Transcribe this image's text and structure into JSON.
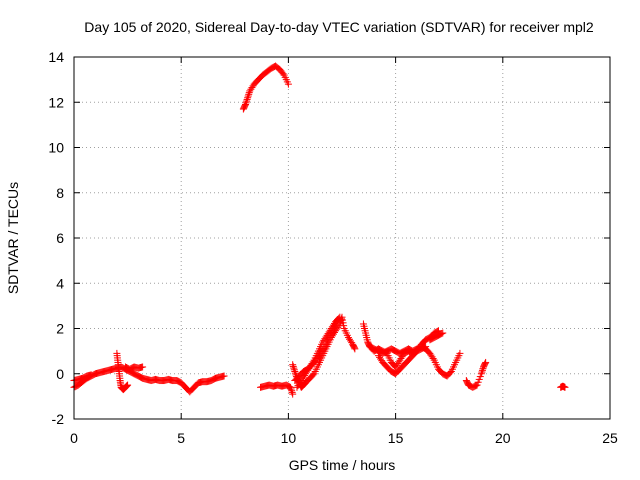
{
  "chart_data": {
    "type": "scatter",
    "title": "Day 105 of 2020, Sidereal Day-to-day VTEC variation (SDTVAR) for receiver mpl2",
    "xlabel": "GPS time / hours",
    "ylabel": "SDTVAR / TECUs",
    "xlim": [
      0,
      25
    ],
    "ylim": [
      -2,
      14
    ],
    "xticks": [
      0,
      5,
      10,
      15,
      20,
      25
    ],
    "yticks": [
      -2,
      0,
      2,
      4,
      6,
      8,
      10,
      12,
      14
    ],
    "grid": true,
    "marker": "+",
    "marker_color": "#ff0000",
    "series": [
      {
        "name": "mpl2",
        "segments": [
          [
            [
              0.0,
              -0.6
            ],
            [
              0.2,
              -0.5
            ],
            [
              0.4,
              -0.35
            ],
            [
              0.6,
              -0.2
            ],
            [
              0.8,
              -0.1
            ],
            [
              1.0,
              0.0
            ],
            [
              1.2,
              0.05
            ],
            [
              1.4,
              0.1
            ],
            [
              1.6,
              0.15
            ],
            [
              1.8,
              0.2
            ],
            [
              2.0,
              0.25
            ],
            [
              2.2,
              0.3
            ],
            [
              2.4,
              0.2
            ],
            [
              2.6,
              0.1
            ],
            [
              2.8,
              0.0
            ],
            [
              3.0,
              -0.1
            ],
            [
              3.2,
              -0.2
            ],
            [
              3.4,
              -0.25
            ],
            [
              3.6,
              -0.3
            ],
            [
              3.8,
              -0.25
            ],
            [
              4.0,
              -0.3
            ],
            [
              4.2,
              -0.3
            ],
            [
              4.4,
              -0.25
            ],
            [
              4.6,
              -0.3
            ],
            [
              4.8,
              -0.3
            ],
            [
              5.0,
              -0.4
            ],
            [
              5.2,
              -0.6
            ],
            [
              5.4,
              -0.8
            ],
            [
              5.6,
              -0.6
            ],
            [
              5.8,
              -0.4
            ],
            [
              6.0,
              -0.35
            ],
            [
              6.2,
              -0.35
            ],
            [
              6.4,
              -0.3
            ],
            [
              6.6,
              -0.2
            ],
            [
              6.8,
              -0.15
            ],
            [
              7.0,
              -0.1
            ]
          ],
          [
            [
              0.0,
              -0.3
            ],
            [
              0.2,
              -0.25
            ],
            [
              0.4,
              -0.2
            ],
            [
              0.6,
              -0.1
            ],
            [
              0.8,
              -0.05
            ]
          ],
          [
            [
              2.0,
              0.9
            ],
            [
              2.05,
              0.5
            ],
            [
              2.1,
              0.1
            ],
            [
              2.15,
              -0.3
            ],
            [
              2.2,
              -0.6
            ],
            [
              2.3,
              -0.7
            ],
            [
              2.4,
              -0.6
            ],
            [
              2.5,
              -0.5
            ]
          ],
          [
            [
              2.4,
              0.3
            ],
            [
              2.6,
              0.2
            ],
            [
              2.8,
              0.3
            ],
            [
              3.0,
              0.25
            ],
            [
              3.2,
              0.3
            ]
          ],
          [
            [
              7.9,
              11.7
            ],
            [
              8.0,
              11.9
            ],
            [
              8.1,
              12.2
            ],
            [
              8.2,
              12.5
            ],
            [
              8.4,
              12.8
            ],
            [
              8.6,
              13.0
            ],
            [
              8.8,
              13.2
            ],
            [
              9.0,
              13.35
            ],
            [
              9.2,
              13.5
            ],
            [
              9.4,
              13.6
            ],
            [
              9.6,
              13.45
            ],
            [
              9.8,
              13.2
            ],
            [
              10.0,
              12.8
            ]
          ],
          [
            [
              8.7,
              -0.6
            ],
            [
              8.9,
              -0.55
            ],
            [
              9.1,
              -0.5
            ],
            [
              9.3,
              -0.55
            ],
            [
              9.5,
              -0.5
            ],
            [
              9.7,
              -0.55
            ],
            [
              9.9,
              -0.5
            ],
            [
              10.1,
              -0.6
            ],
            [
              10.2,
              -0.9
            ]
          ],
          [
            [
              10.2,
              0.4
            ],
            [
              10.3,
              0.1
            ],
            [
              10.4,
              -0.2
            ],
            [
              10.5,
              -0.4
            ],
            [
              10.6,
              -0.6
            ],
            [
              10.7,
              -0.5
            ],
            [
              10.8,
              -0.4
            ],
            [
              11.0,
              -0.2
            ],
            [
              11.2,
              0.0
            ],
            [
              11.4,
              0.4
            ],
            [
              11.6,
              0.8
            ],
            [
              11.8,
              1.2
            ],
            [
              12.0,
              1.6
            ],
            [
              12.2,
              1.9
            ],
            [
              12.4,
              2.2
            ],
            [
              12.5,
              2.5
            ],
            [
              12.6,
              2.0
            ],
            [
              12.8,
              1.6
            ],
            [
              13.0,
              1.3
            ],
            [
              13.1,
              1.1
            ]
          ],
          [
            [
              10.4,
              -0.6
            ],
            [
              10.6,
              -0.3
            ],
            [
              10.8,
              0.0
            ],
            [
              11.0,
              0.3
            ],
            [
              11.2,
              0.6
            ],
            [
              11.4,
              1.0
            ],
            [
              11.6,
              1.4
            ],
            [
              11.8,
              1.7
            ],
            [
              12.0,
              2.0
            ],
            [
              12.2,
              2.3
            ],
            [
              12.4,
              2.5
            ]
          ],
          [
            [
              10.3,
              -0.3
            ],
            [
              10.5,
              -0.1
            ],
            [
              10.7,
              0.1
            ],
            [
              10.9,
              0.2
            ],
            [
              11.1,
              0.4
            ],
            [
              11.3,
              0.6
            ],
            [
              11.5,
              0.9
            ],
            [
              11.7,
              1.2
            ],
            [
              11.9,
              1.6
            ],
            [
              12.1,
              2.0
            ],
            [
              12.3,
              2.4
            ]
          ],
          [
            [
              13.5,
              2.2
            ],
            [
              13.6,
              1.8
            ],
            [
              13.7,
              1.4
            ],
            [
              13.8,
              1.2
            ],
            [
              14.0,
              1.0
            ],
            [
              14.2,
              1.1
            ],
            [
              14.4,
              1.0
            ],
            [
              14.6,
              0.9
            ],
            [
              14.8,
              0.5
            ],
            [
              15.0,
              0.3
            ],
            [
              15.2,
              0.6
            ],
            [
              15.4,
              0.9
            ],
            [
              15.6,
              1.0
            ],
            [
              15.8,
              0.9
            ],
            [
              16.0,
              1.0
            ],
            [
              16.2,
              1.1
            ],
            [
              16.4,
              1.2
            ]
          ],
          [
            [
              14.2,
              0.8
            ],
            [
              14.4,
              0.5
            ],
            [
              14.6,
              0.3
            ],
            [
              14.8,
              0.1
            ],
            [
              15.0,
              0.0
            ],
            [
              15.2,
              0.2
            ],
            [
              15.4,
              0.4
            ],
            [
              15.6,
              0.6
            ],
            [
              15.8,
              0.8
            ],
            [
              16.0,
              1.0
            ],
            [
              16.2,
              1.3
            ],
            [
              16.4,
              1.5
            ],
            [
              16.6,
              1.6
            ],
            [
              16.8,
              1.8
            ],
            [
              17.0,
              1.9
            ]
          ],
          [
            [
              13.8,
              1.2
            ],
            [
              14.0,
              1.1
            ],
            [
              14.2,
              1.0
            ],
            [
              14.4,
              0.9
            ],
            [
              14.6,
              1.0
            ],
            [
              14.8,
              1.1
            ],
            [
              15.0,
              1.0
            ],
            [
              15.2,
              0.9
            ],
            [
              15.4,
              1.0
            ],
            [
              15.6,
              1.1
            ],
            [
              15.8,
              1.0
            ],
            [
              16.0,
              1.1
            ],
            [
              16.2,
              1.2
            ],
            [
              16.4,
              1.1
            ],
            [
              16.6,
              0.9
            ],
            [
              16.8,
              0.6
            ],
            [
              17.0,
              0.2
            ],
            [
              17.2,
              0.0
            ],
            [
              17.4,
              -0.1
            ],
            [
              17.6,
              0.1
            ],
            [
              17.8,
              0.5
            ],
            [
              18.0,
              0.9
            ]
          ],
          [
            [
              16.6,
              1.5
            ],
            [
              16.8,
              1.6
            ],
            [
              17.0,
              1.7
            ],
            [
              17.2,
              1.8
            ]
          ],
          [
            [
              18.3,
              -0.3
            ],
            [
              18.4,
              -0.5
            ],
            [
              18.6,
              -0.6
            ],
            [
              18.8,
              -0.5
            ],
            [
              19.0,
              0.0
            ],
            [
              19.1,
              0.3
            ],
            [
              19.2,
              0.5
            ]
          ],
          [
            [
              22.7,
              -0.6
            ],
            [
              22.8,
              -0.55
            ],
            [
              22.9,
              -0.6
            ]
          ]
        ]
      }
    ]
  }
}
